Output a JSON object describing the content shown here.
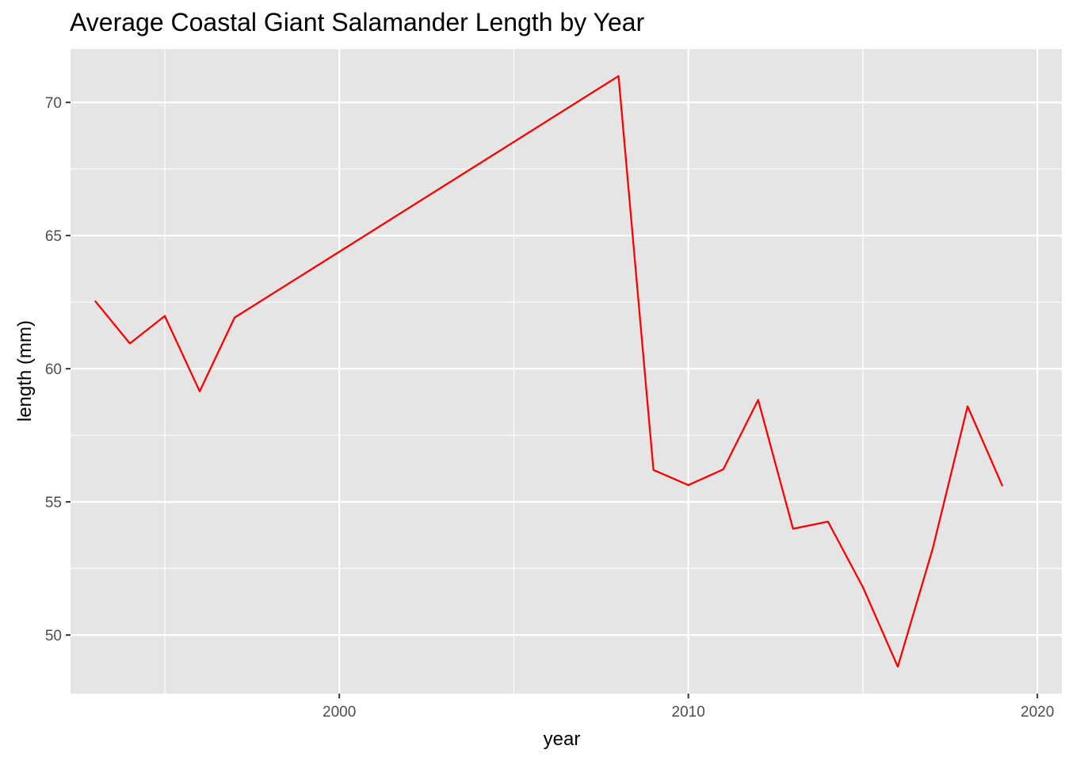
{
  "chart_data": {
    "type": "line",
    "title": "Average Coastal Giant Salamander Length by Year",
    "xlabel": "year",
    "ylabel": "length (mm)",
    "xlim": [
      1992.3,
      2020.7
    ],
    "ylim": [
      47.8,
      72.0
    ],
    "x_ticks": [
      2000,
      2010,
      2020
    ],
    "y_ticks": [
      50,
      55,
      60,
      65,
      70
    ],
    "x_tick_labels": [
      "2000",
      "2010",
      "2020"
    ],
    "y_tick_labels": [
      "50",
      "55",
      "60",
      "65",
      "70"
    ],
    "grid": true,
    "legend": "none",
    "colors": {
      "panel": "#e5e5e5",
      "grid": "#ffffff",
      "line": "#ff0000"
    },
    "series": [
      {
        "x": [
          1993,
          1994,
          1995,
          1996,
          1997,
          2008,
          2009,
          2010,
          2011,
          2012,
          2013,
          2014,
          2015,
          2016,
          2017,
          2018,
          2019
        ],
        "values": [
          62.55,
          60.95,
          61.98,
          59.15,
          61.92,
          70.99,
          56.2,
          55.63,
          56.22,
          58.83,
          53.99,
          54.26,
          51.8,
          48.81,
          53.24,
          58.59,
          55.59
        ]
      }
    ]
  }
}
